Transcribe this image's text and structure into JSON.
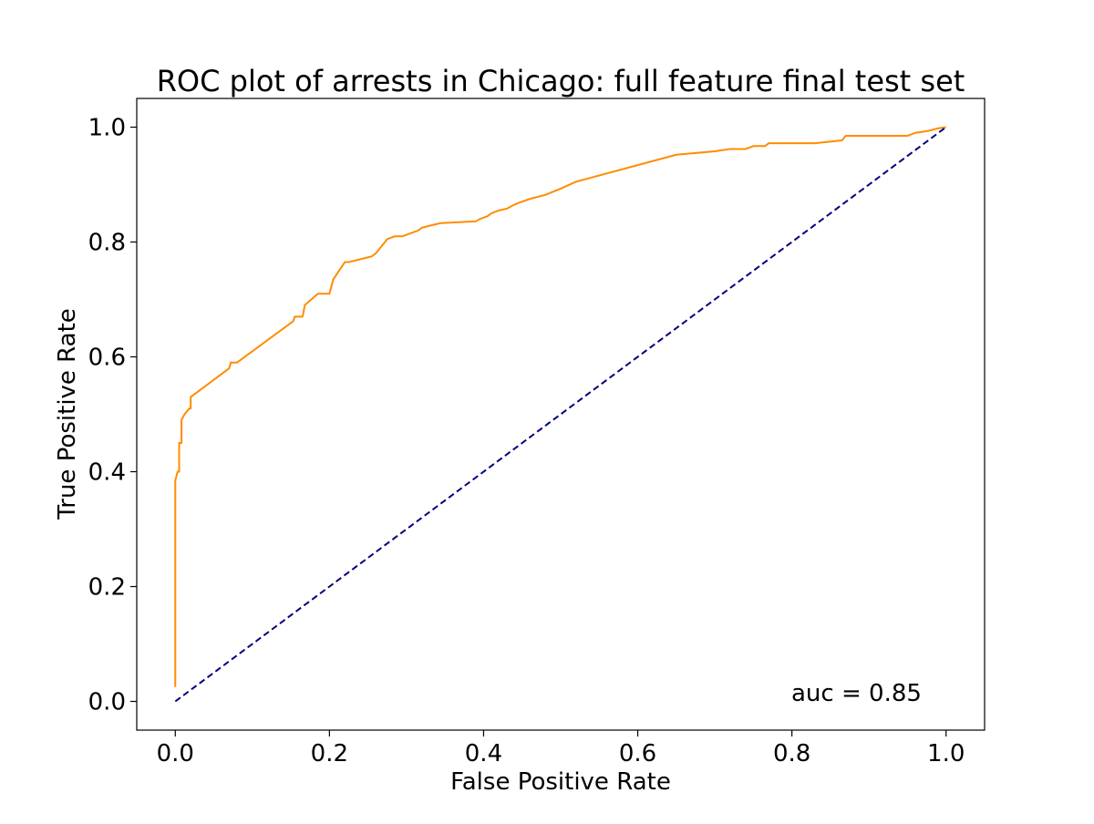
{
  "chart_data": {
    "type": "line",
    "title": "ROC plot of arrests in Chicago: full feature final test set",
    "xlabel": "False Positive Rate",
    "ylabel": "True Positive Rate",
    "xlim": [
      -0.05,
      1.05
    ],
    "ylim": [
      -0.05,
      1.05
    ],
    "x_ticks": [
      0.0,
      0.2,
      0.4,
      0.6,
      0.8,
      1.0
    ],
    "y_ticks": [
      0.0,
      0.2,
      0.4,
      0.6,
      0.8,
      1.0
    ],
    "x_tick_labels": [
      "0.0",
      "0.2",
      "0.4",
      "0.6",
      "0.8",
      "1.0"
    ],
    "y_tick_labels": [
      "0.0",
      "0.2",
      "0.4",
      "0.6",
      "0.8",
      "1.0"
    ],
    "grid": false,
    "annotation": "auc = 0.85",
    "series": [
      {
        "role": "roc-curve",
        "color": "#ff8c00",
        "line_style": "solid",
        "x": [
          0.0,
          0.0,
          0.003,
          0.005,
          0.005,
          0.008,
          0.008,
          0.012,
          0.018,
          0.02,
          0.02,
          0.07,
          0.072,
          0.08,
          0.153,
          0.155,
          0.165,
          0.166,
          0.168,
          0.185,
          0.2,
          0.202,
          0.205,
          0.22,
          0.22,
          0.225,
          0.255,
          0.26,
          0.275,
          0.285,
          0.295,
          0.315,
          0.32,
          0.335,
          0.345,
          0.39,
          0.395,
          0.405,
          0.41,
          0.42,
          0.43,
          0.44,
          0.445,
          0.46,
          0.48,
          0.5,
          0.52,
          0.65,
          0.7,
          0.72,
          0.74,
          0.75,
          0.765,
          0.77,
          0.83,
          0.865,
          0.87,
          0.945,
          0.95,
          0.96,
          0.975,
          0.99,
          1.0
        ],
        "y": [
          0.025,
          0.385,
          0.4,
          0.4,
          0.45,
          0.45,
          0.49,
          0.5,
          0.51,
          0.51,
          0.53,
          0.58,
          0.59,
          0.59,
          0.662,
          0.67,
          0.67,
          0.675,
          0.69,
          0.71,
          0.71,
          0.72,
          0.735,
          0.765,
          0.765,
          0.765,
          0.775,
          0.78,
          0.805,
          0.81,
          0.81,
          0.82,
          0.825,
          0.83,
          0.833,
          0.836,
          0.84,
          0.845,
          0.85,
          0.855,
          0.858,
          0.865,
          0.868,
          0.875,
          0.882,
          0.893,
          0.905,
          0.952,
          0.958,
          0.962,
          0.962,
          0.967,
          0.967,
          0.972,
          0.972,
          0.977,
          0.985,
          0.985,
          0.985,
          0.99,
          0.993,
          0.998,
          1.0
        ]
      },
      {
        "role": "chance-diagonal",
        "color": "#000080",
        "line_style": "dashed",
        "x": [
          0.0,
          1.0
        ],
        "y": [
          0.0,
          1.0
        ]
      }
    ]
  }
}
